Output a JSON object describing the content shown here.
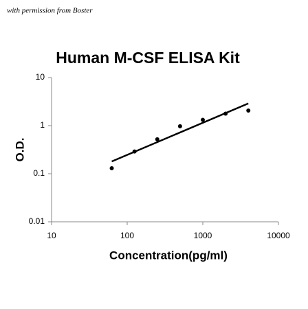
{
  "chart_data": {
    "type": "scatter",
    "note": "with permission from Boster",
    "title": "Human M-CSF ELISA Kit",
    "x_label": "Concentration(pg/ml)",
    "y_label": "O.D.",
    "x": [
      62.5,
      125,
      250,
      500,
      1000,
      2000,
      4000
    ],
    "values": [
      0.13,
      0.29,
      0.52,
      0.97,
      1.32,
      1.78,
      2.06
    ],
    "fit": {
      "x": [
        62.5,
        4000
      ],
      "values": [
        0.18,
        2.9
      ]
    },
    "color": "#000000",
    "log_x": true,
    "log_y": true,
    "xlim": [
      10,
      10000
    ],
    "xticks": [
      10,
      100,
      1000,
      10000
    ],
    "ylim": [
      0.01,
      10
    ],
    "yticks": [
      0.01,
      0.1,
      1,
      10
    ]
  }
}
